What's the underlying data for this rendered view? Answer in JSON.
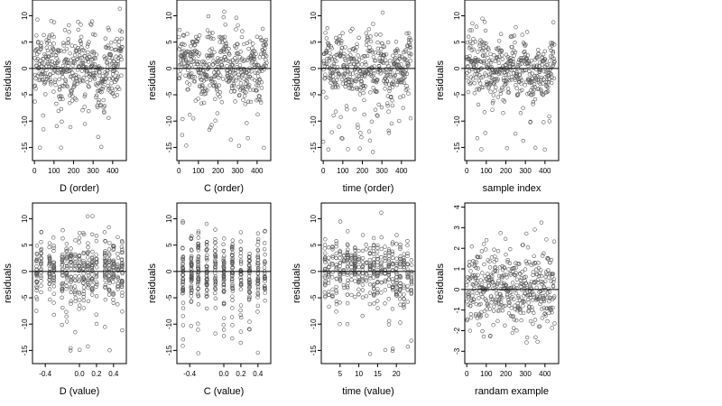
{
  "chart_data": [
    {
      "type": "scatter",
      "xlabel": "D (order)",
      "ylabel": "residuals",
      "xlim": [
        -10,
        470
      ],
      "ylim": [
        -17.5,
        13
      ],
      "xticks": [
        0,
        100,
        200,
        300,
        400
      ],
      "yticks": [
        -15,
        -10,
        -5,
        0,
        5,
        10
      ],
      "hline": 0,
      "pattern": "order",
      "n": 450,
      "spread": 4.3,
      "seed": 11
    },
    {
      "type": "scatter",
      "xlabel": "C (order)",
      "ylabel": "residuals",
      "xlim": [
        -10,
        470
      ],
      "ylim": [
        -17.5,
        13
      ],
      "xticks": [
        0,
        100,
        200,
        300,
        400
      ],
      "yticks": [
        -15,
        -10,
        -5,
        0,
        5,
        10
      ],
      "hline": 0,
      "pattern": "order",
      "n": 450,
      "spread": 4.3,
      "seed": 23
    },
    {
      "type": "scatter",
      "xlabel": "time (order)",
      "ylabel": "residuals",
      "xlim": [
        -10,
        470
      ],
      "ylim": [
        -17.5,
        13
      ],
      "xticks": [
        0,
        100,
        200,
        300,
        400
      ],
      "yticks": [
        -15,
        -10,
        -5,
        0,
        5,
        10
      ],
      "hline": 0,
      "pattern": "order",
      "n": 450,
      "spread": 4.3,
      "seed": 37
    },
    {
      "type": "scatter",
      "xlabel": "sample index",
      "ylabel": "residuals",
      "xlim": [
        -10,
        470
      ],
      "ylim": [
        -17.5,
        13
      ],
      "xticks": [
        0,
        100,
        200,
        300,
        400
      ],
      "yticks": [
        -15,
        -10,
        -5,
        0,
        5,
        10
      ],
      "hline": 0,
      "pattern": "order",
      "n": 450,
      "spread": 4.3,
      "seed": 41
    },
    {
      "type": "scatter",
      "xlabel": "D (value)",
      "ylabel": "residuals",
      "xlim": [
        -0.55,
        0.55
      ],
      "ylim": [
        -17.5,
        13
      ],
      "xticks": [
        -0.4,
        0.0,
        0.2,
        0.4
      ],
      "xtick_labels": [
        "-0.4",
        "0.0",
        "0.2",
        "0.4"
      ],
      "yticks": [
        -15,
        -10,
        -5,
        0,
        5,
        10
      ],
      "hline": 0,
      "pattern": "dvalue",
      "n": 450,
      "spread": 4.3,
      "seed": 53
    },
    {
      "type": "scatter",
      "xlabel": "C (value)",
      "ylabel": "residuals",
      "xlim": [
        -0.55,
        0.55
      ],
      "ylim": [
        -17.5,
        13
      ],
      "xticks": [
        -0.4,
        0.0,
        0.2,
        0.4
      ],
      "xtick_labels": [
        "-0.4",
        "0.0",
        "0.2",
        "0.4"
      ],
      "yticks": [
        -15,
        -10,
        -5,
        0,
        5,
        10
      ],
      "hline": 0,
      "pattern": "cvalue",
      "n": 450,
      "spread": 4.3,
      "seed": 67
    },
    {
      "type": "scatter",
      "xlabel": "time (value)",
      "ylabel": "residuals",
      "xlim": [
        0,
        25
      ],
      "ylim": [
        -17.5,
        13
      ],
      "xticks": [
        5,
        10,
        15,
        20
      ],
      "yticks": [
        -15,
        -10,
        -5,
        0,
        5,
        10
      ],
      "hline": 0,
      "pattern": "tvalue",
      "n": 450,
      "spread": 4.3,
      "seed": 79
    },
    {
      "type": "scatter",
      "xlabel": "randam example",
      "ylabel": "residuals",
      "xlim": [
        -10,
        470
      ],
      "ylim": [
        -3.6,
        4.2
      ],
      "xticks": [
        0,
        100,
        200,
        300,
        400
      ],
      "yticks": [
        -3,
        -2,
        -1,
        0,
        1,
        2,
        3,
        4
      ],
      "hline": 0,
      "pattern": "random",
      "n": 450,
      "spread": 1.0,
      "seed": 97
    }
  ]
}
